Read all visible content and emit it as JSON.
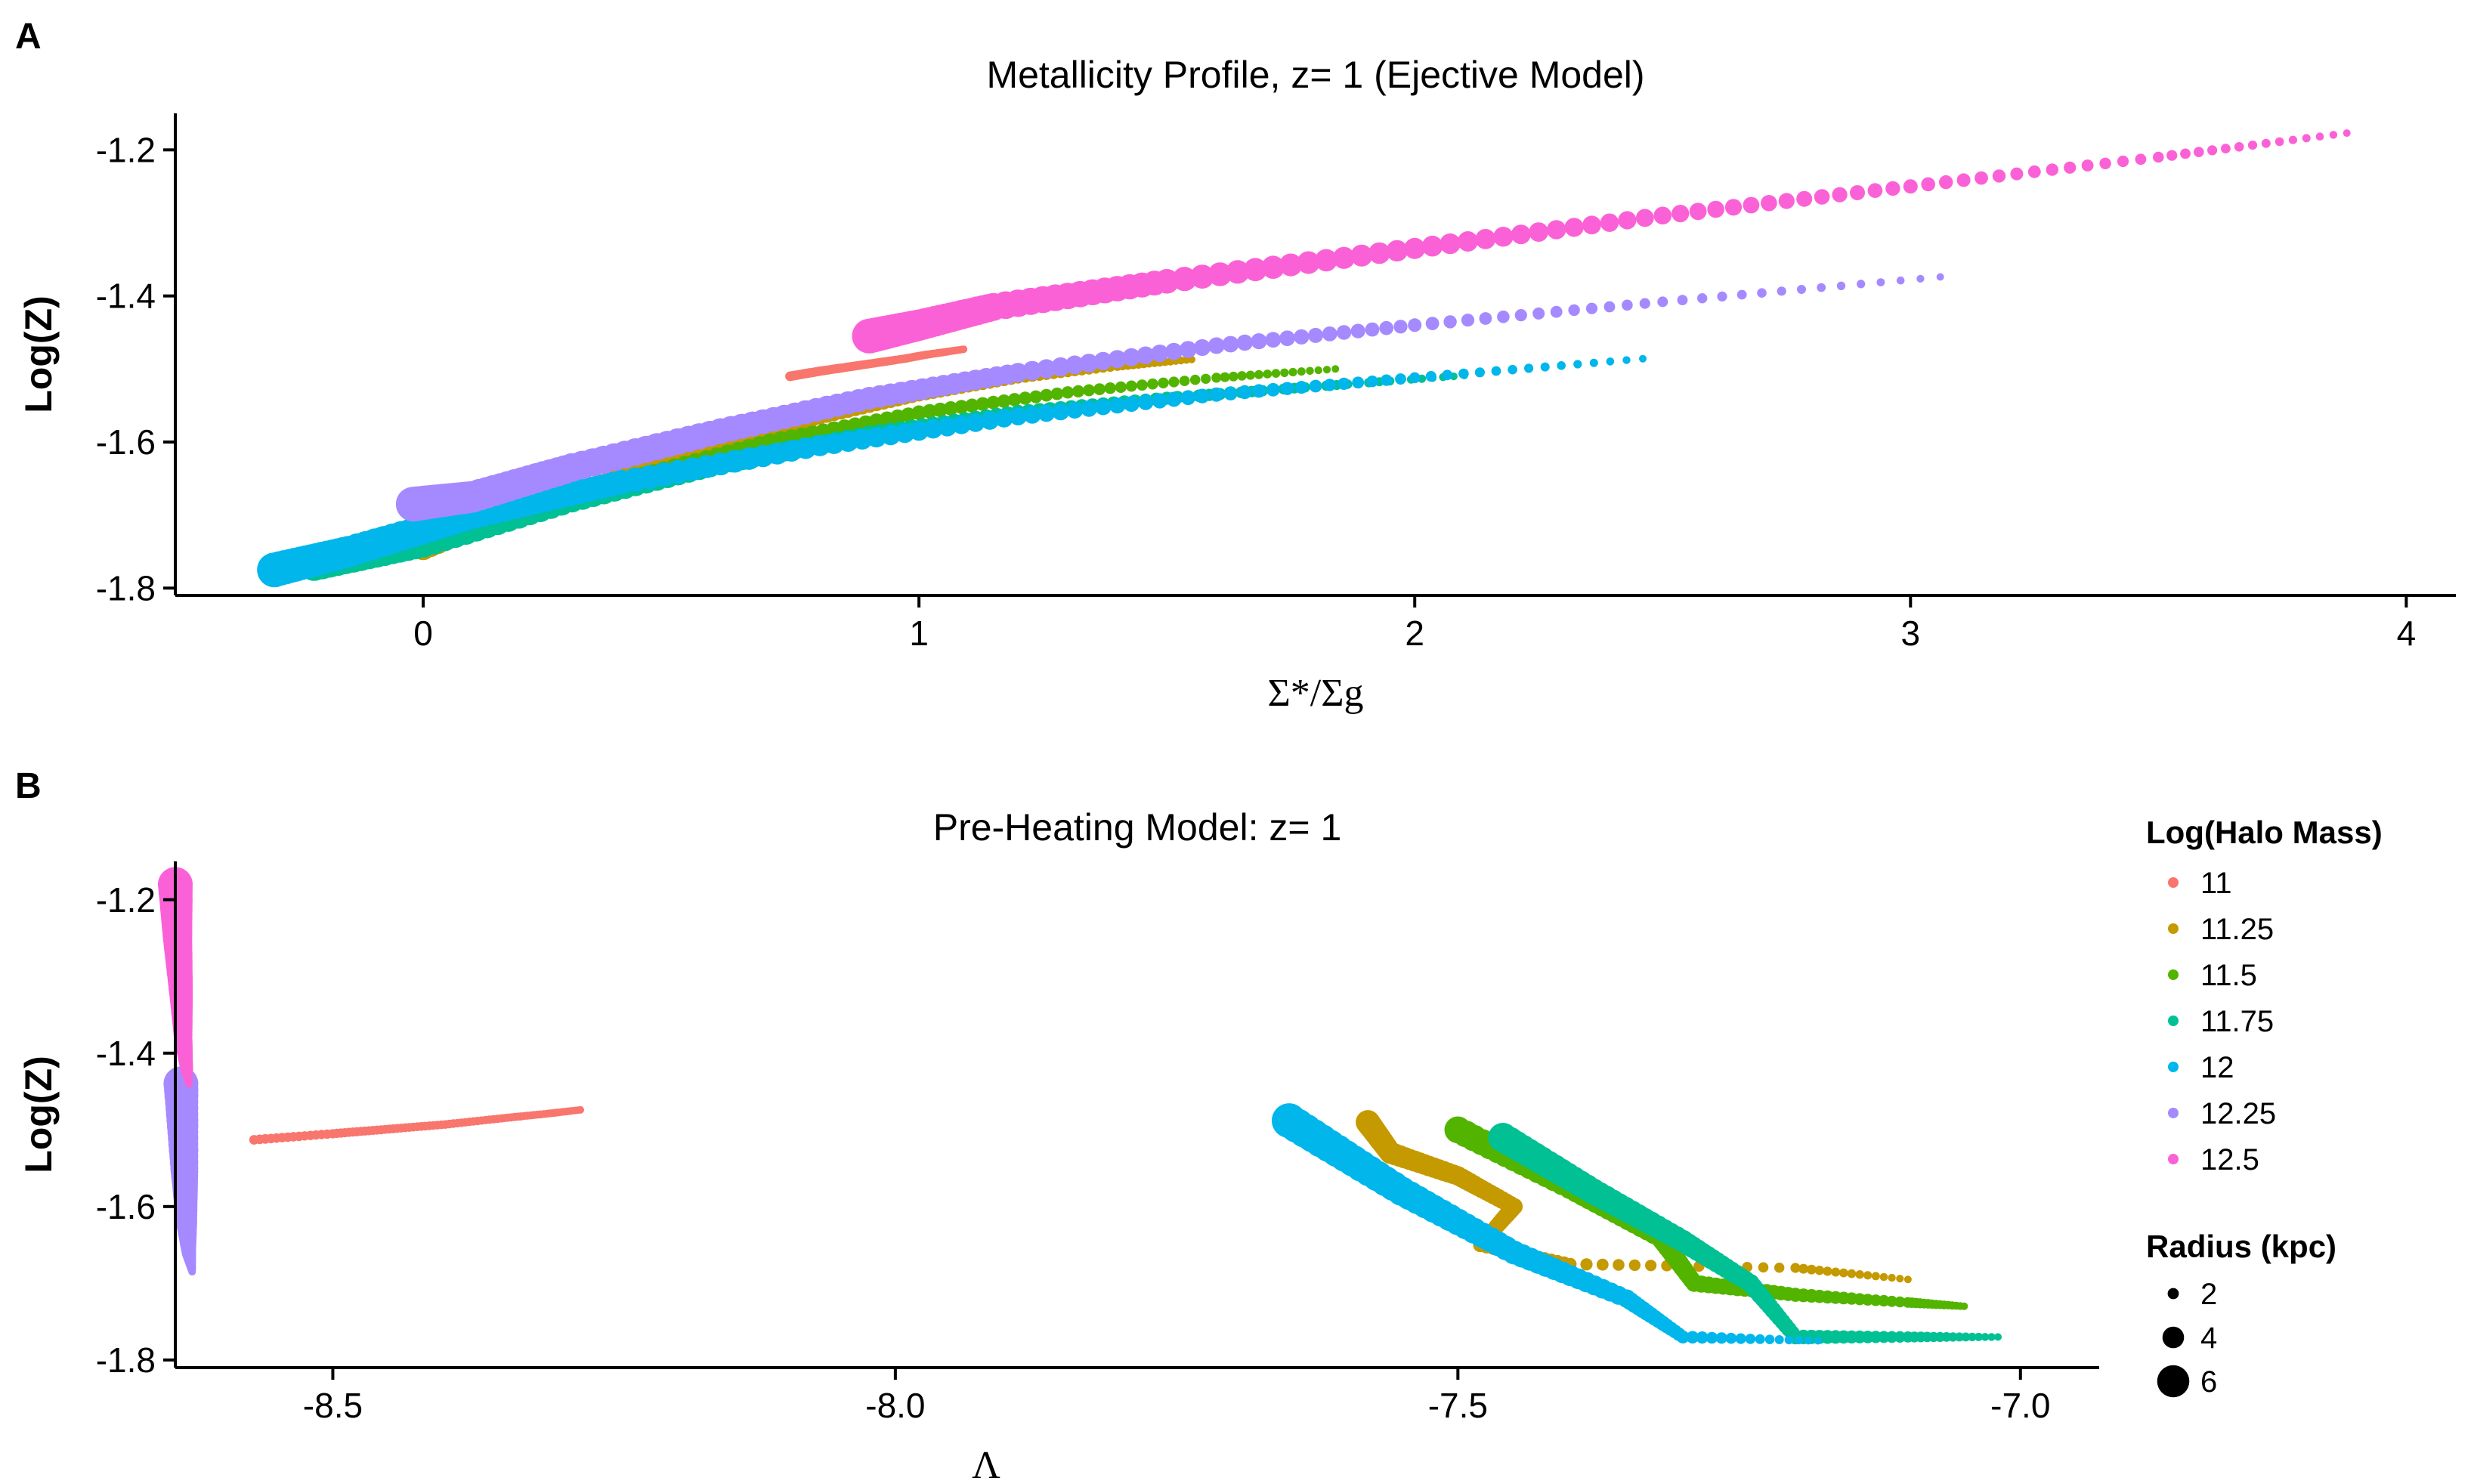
{
  "panels": {
    "a": {
      "letter": "A"
    },
    "b": {
      "letter": "B"
    }
  },
  "legend": {
    "color_title": "Log(Halo Mass)",
    "color_entries": [
      {
        "label": "11",
        "color": "#F8766D"
      },
      {
        "label": "11.25",
        "color": "#C49A00"
      },
      {
        "label": "11.5",
        "color": "#53B400"
      },
      {
        "label": "11.75",
        "color": "#00C094"
      },
      {
        "label": "12",
        "color": "#00B6EB"
      },
      {
        "label": "12.25",
        "color": "#A58AFF"
      },
      {
        "label": "12.5",
        "color": "#FB61D7"
      }
    ],
    "size_title": "Radius (kpc)",
    "size_entries": [
      {
        "label": "2",
        "radius_kpc": 2
      },
      {
        "label": "4",
        "radius_kpc": 4
      },
      {
        "label": "6",
        "radius_kpc": 6
      }
    ]
  },
  "chart_data": [
    {
      "type": "scatter",
      "title": "Metallicity Profile, z= 1 (Ejective Model)",
      "xlabel": "Σ*/Σg",
      "ylabel": "Log(Z)",
      "xlim": [
        -0.5,
        4.1
      ],
      "ylim": [
        -1.81,
        -1.15
      ],
      "x_ticks": [
        0,
        1,
        2,
        3,
        4
      ],
      "x_tick_labels": [
        "0",
        "1",
        "2",
        "3",
        "4"
      ],
      "y_ticks": [
        -1.8,
        -1.6,
        -1.4,
        -1.2
      ],
      "y_tick_labels": [
        "-1.8",
        "-1.6",
        "-1.4",
        "-1.2"
      ],
      "grid": false,
      "legend_position": "right",
      "series": [
        {
          "name": "11",
          "color": "#F8766D",
          "points": [
            [
              0.74,
              -1.51
            ],
            [
              0.8,
              -1.503
            ],
            [
              0.86,
              -1.497
            ],
            [
              0.92,
              -1.491
            ],
            [
              0.97,
              -1.486
            ],
            [
              1.01,
              -1.481
            ],
            [
              1.05,
              -1.477
            ],
            [
              1.09,
              -1.473
            ]
          ],
          "radius_range_kpc": [
            1.3,
            1.7
          ]
        },
        {
          "name": "11.25",
          "color": "#C49A00",
          "points": [
            [
              0.0,
              -1.745
            ],
            [
              0.2,
              -1.69
            ],
            [
              0.4,
              -1.65
            ],
            [
              0.6,
              -1.605
            ],
            [
              0.8,
              -1.565
            ],
            [
              1.0,
              -1.535
            ],
            [
              1.2,
              -1.512
            ],
            [
              1.4,
              -1.496
            ],
            [
              1.55,
              -1.487
            ]
          ],
          "radius_range_kpc": [
            1.3,
            4.5
          ]
        },
        {
          "name": "11.5",
          "color": "#53B400",
          "points": [
            [
              -0.18,
              -1.76
            ],
            [
              -0.05,
              -1.735
            ],
            [
              0.15,
              -1.7
            ],
            [
              0.4,
              -1.655
            ],
            [
              0.7,
              -1.6
            ],
            [
              1.0,
              -1.56
            ],
            [
              1.3,
              -1.532
            ],
            [
              1.6,
              -1.512
            ],
            [
              1.84,
              -1.5
            ]
          ],
          "radius_range_kpc": [
            1.3,
            5.0
          ]
        },
        {
          "name": "11.75",
          "color": "#00C094",
          "points": [
            [
              -0.22,
              -1.77
            ],
            [
              0.0,
              -1.74
            ],
            [
              0.3,
              -1.68
            ],
            [
              0.6,
              -1.63
            ],
            [
              0.9,
              -1.59
            ],
            [
              1.2,
              -1.56
            ],
            [
              1.5,
              -1.54
            ],
            [
              1.8,
              -1.524
            ],
            [
              2.1,
              -1.509
            ]
          ],
          "radius_range_kpc": [
            1.3,
            5.5
          ]
        },
        {
          "name": "12",
          "color": "#00B6EB",
          "points": [
            [
              -0.3,
              -1.775
            ],
            [
              -0.15,
              -1.75
            ],
            [
              0.1,
              -1.7
            ],
            [
              0.4,
              -1.655
            ],
            [
              0.8,
              -1.605
            ],
            [
              1.2,
              -1.565
            ],
            [
              1.6,
              -1.535
            ],
            [
              2.0,
              -1.512
            ],
            [
              2.46,
              -1.486
            ]
          ],
          "radius_range_kpc": [
            1.3,
            6.5
          ]
        },
        {
          "name": "12.25",
          "color": "#A58AFF",
          "points": [
            [
              -0.02,
              -1.685
            ],
            [
              0.1,
              -1.675
            ],
            [
              0.3,
              -1.635
            ],
            [
              0.6,
              -1.585
            ],
            [
              0.9,
              -1.54
            ],
            [
              1.2,
              -1.505
            ],
            [
              1.6,
              -1.468
            ],
            [
              2.0,
              -1.44
            ],
            [
              2.5,
              -1.408
            ],
            [
              3.06,
              -1.374
            ]
          ],
          "radius_range_kpc": [
            1.3,
            6.5
          ]
        },
        {
          "name": "12.5",
          "color": "#FB61D7",
          "points": [
            [
              0.9,
              -1.455
            ],
            [
              1.0,
              -1.44
            ],
            [
              1.15,
              -1.415
            ],
            [
              1.5,
              -1.38
            ],
            [
              2.0,
              -1.335
            ],
            [
              2.5,
              -1.29
            ],
            [
              3.0,
              -1.25
            ],
            [
              3.5,
              -1.21
            ],
            [
              3.88,
              -1.177
            ]
          ],
          "radius_range_kpc": [
            1.3,
            6.5
          ]
        }
      ]
    },
    {
      "type": "scatter",
      "title": "Pre-Heating Model: z= 1",
      "xlabel": "Λ",
      "ylabel": "Log(Z)",
      "xlim": [
        -8.64,
        -6.93
      ],
      "ylim": [
        -1.81,
        -1.15
      ],
      "x_ticks": [
        -8.5,
        -8.0,
        -7.5,
        -7.0
      ],
      "x_tick_labels": [
        "-8.5",
        "-8.0",
        "-7.5",
        "-7.0"
      ],
      "y_ticks": [
        -1.8,
        -1.6,
        -1.4,
        -1.2
      ],
      "y_tick_labels": [
        "-1.8",
        "-1.6",
        "-1.4",
        "-1.2"
      ],
      "grid": false,
      "legend_position": "right",
      "series": [
        {
          "name": "11",
          "color": "#F8766D",
          "points": [
            [
              -8.57,
              -1.513
            ],
            [
              -8.5,
              -1.505
            ],
            [
              -8.45,
              -1.499
            ],
            [
              -8.4,
              -1.493
            ],
            [
              -8.35,
              -1.485
            ],
            [
              -8.31,
              -1.479
            ],
            [
              -8.28,
              -1.474
            ]
          ],
          "radius_range_kpc": [
            1.3,
            1.7
          ]
        },
        {
          "name": "11.25",
          "color": "#C49A00",
          "points": [
            [
              -7.58,
              -1.49
            ],
            [
              -7.56,
              -1.53
            ],
            [
              -7.5,
              -1.56
            ],
            [
              -7.45,
              -1.6
            ],
            [
              -7.48,
              -1.65
            ],
            [
              -7.4,
              -1.675
            ],
            [
              -7.2,
              -1.68
            ],
            [
              -7.1,
              -1.695
            ]
          ],
          "radius_range_kpc": [
            1.3,
            4.5
          ]
        },
        {
          "name": "11.5",
          "color": "#53B400",
          "points": [
            [
              -7.5,
              -1.5
            ],
            [
              -7.4,
              -1.575
            ],
            [
              -7.32,
              -1.64
            ],
            [
              -7.29,
              -1.7
            ],
            [
              -7.2,
              -1.715
            ],
            [
              -7.1,
              -1.725
            ],
            [
              -7.05,
              -1.73
            ]
          ],
          "radius_range_kpc": [
            1.3,
            5.0
          ]
        },
        {
          "name": "11.75",
          "color": "#00C094",
          "points": [
            [
              -7.46,
              -1.51
            ],
            [
              -7.38,
              -1.58
            ],
            [
              -7.3,
              -1.645
            ],
            [
              -7.24,
              -1.7
            ],
            [
              -7.2,
              -1.77
            ],
            [
              -7.1,
              -1.77
            ],
            [
              -7.02,
              -1.77
            ]
          ],
          "radius_range_kpc": [
            1.3,
            5.5
          ]
        },
        {
          "name": "12",
          "color": "#00B6EB",
          "points": [
            [
              -7.65,
              -1.488
            ],
            [
              -7.55,
              -1.58
            ],
            [
              -7.45,
              -1.66
            ],
            [
              -7.35,
              -1.72
            ],
            [
              -7.3,
              -1.77
            ],
            [
              -7.18,
              -1.775
            ]
          ],
          "radius_range_kpc": [
            1.3,
            6.5
          ]
        },
        {
          "name": "12.25",
          "color": "#A58AFF",
          "points": [
            [
              -8.635,
              -1.44
            ],
            [
              -8.632,
              -1.55
            ],
            [
              -8.63,
              -1.62
            ],
            [
              -8.628,
              -1.66
            ],
            [
              -8.625,
              -1.685
            ]
          ],
          "radius_range_kpc": [
            1.3,
            6.5
          ]
        },
        {
          "name": "12.5",
          "color": "#FB61D7",
          "points": [
            [
              -8.64,
              -1.18
            ],
            [
              -8.638,
              -1.25
            ],
            [
              -8.635,
              -1.32
            ],
            [
              -8.633,
              -1.38
            ],
            [
              -8.63,
              -1.42
            ],
            [
              -8.628,
              -1.44
            ]
          ],
          "radius_range_kpc": [
            1.3,
            6.5
          ]
        }
      ]
    }
  ]
}
